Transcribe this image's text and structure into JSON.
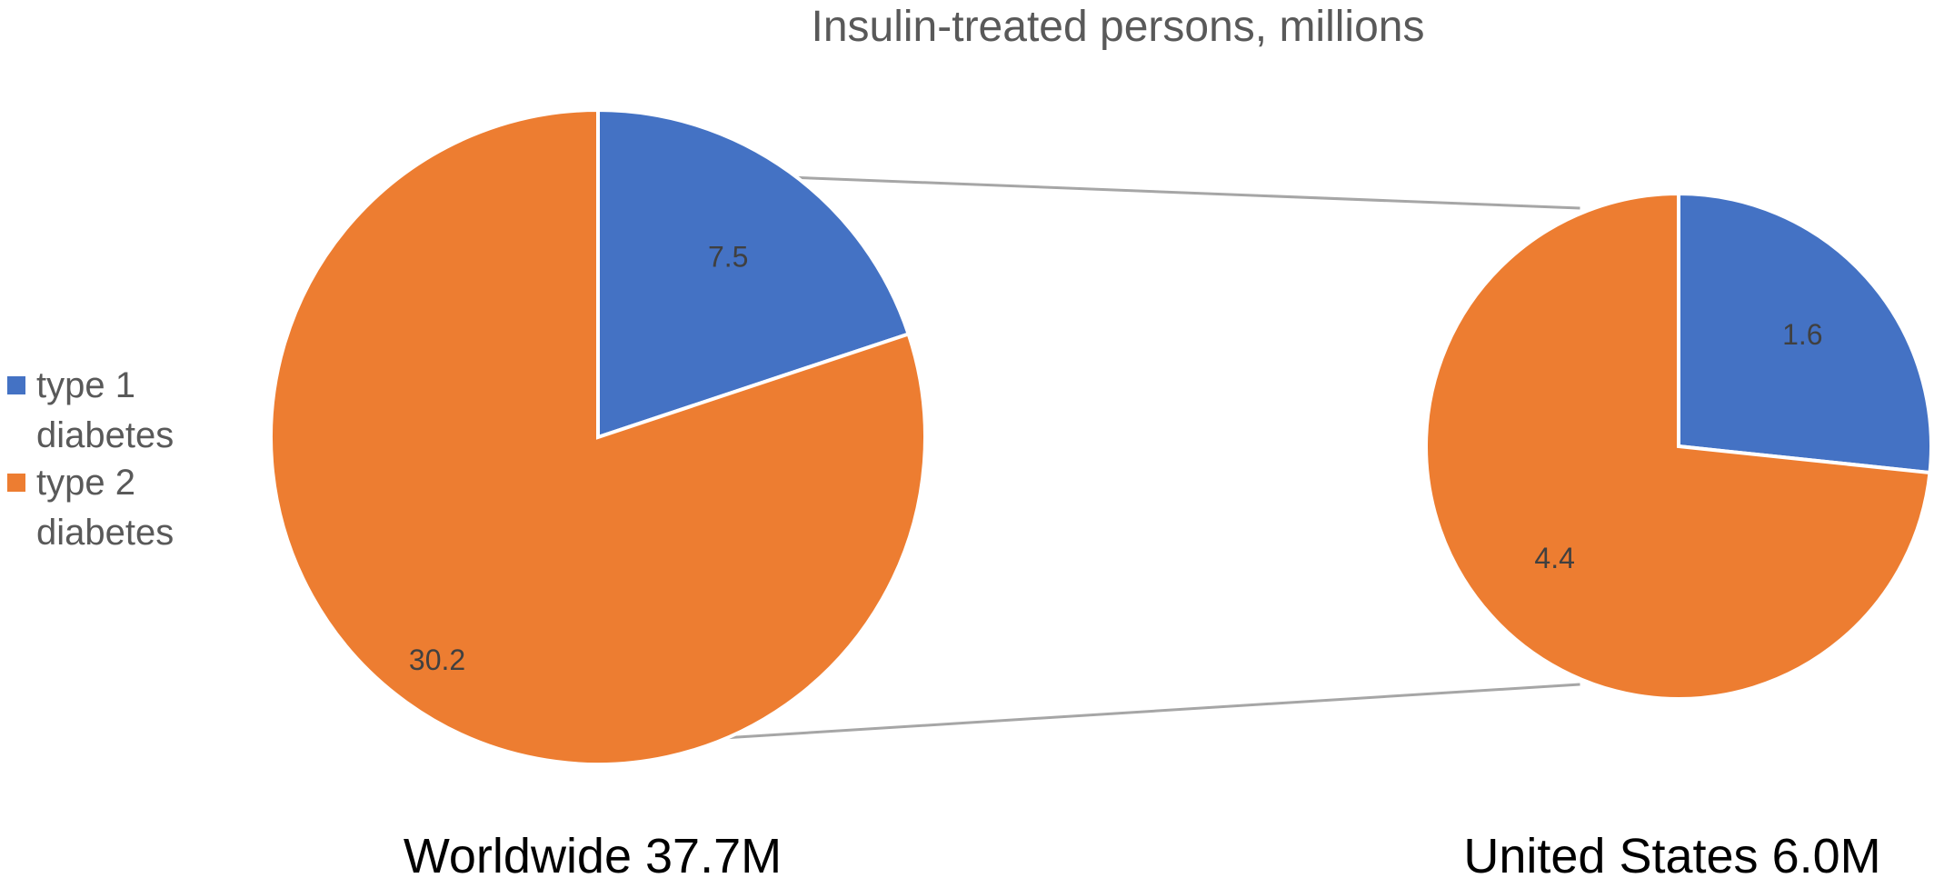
{
  "chart_data": {
    "type": "pie",
    "title": "Insulin-treated persons, millions",
    "legend": {
      "placement": "left",
      "entries": [
        {
          "lines": [
            "type 1",
            "diabetes"
          ],
          "color": "#4472C4"
        },
        {
          "lines": [
            "type 2",
            "diabetes"
          ],
          "color": "#ED7D31"
        }
      ]
    },
    "charts": [
      {
        "caption": "Worldwide 37.7M",
        "slices": [
          {
            "label": "7.5",
            "value": 7.5,
            "color": "#4472C4"
          },
          {
            "label": "30.2",
            "value": 30.2,
            "color": "#ED7D31"
          }
        ]
      },
      {
        "caption": "United States 6.0M",
        "slices": [
          {
            "label": "1.6",
            "value": 1.6,
            "color": "#4472C4"
          },
          {
            "label": "4.4",
            "value": 4.4,
            "color": "#ED7D31"
          }
        ]
      }
    ]
  }
}
